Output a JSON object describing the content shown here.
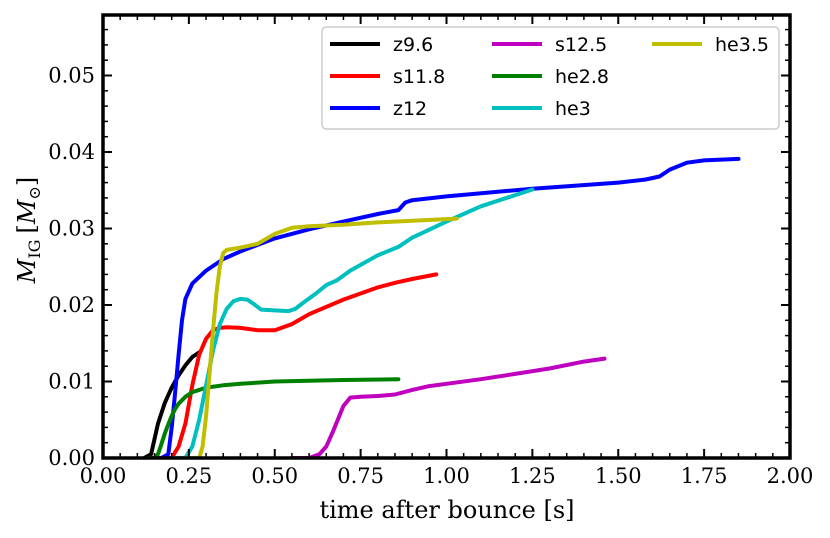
{
  "chart_data": {
    "type": "line",
    "title": "",
    "xlabel": "time after bounce [s]",
    "ylabel_main": "M",
    "ylabel_sub": "IG",
    "ylabel_unit_open": "[",
    "ylabel_unit_main": "M",
    "ylabel_unit_sub": "⊙",
    "ylabel_unit_close": "]",
    "xlim": [
      0.0,
      2.0
    ],
    "ylim": [
      0.0,
      0.058
    ],
    "x_ticks": [
      0.0,
      0.25,
      0.5,
      0.75,
      1.0,
      1.25,
      1.5,
      1.75,
      2.0
    ],
    "x_tick_labels": [
      "0.00",
      "0.25",
      "0.50",
      "0.75",
      "1.00",
      "1.25",
      "1.50",
      "1.75",
      "2.00"
    ],
    "y_ticks": [
      0.0,
      0.01,
      0.02,
      0.03,
      0.04,
      0.05
    ],
    "y_tick_labels": [
      "0.00",
      "0.01",
      "0.02",
      "0.03",
      "0.04",
      "0.05"
    ],
    "grid": false,
    "legend_position": "top-right",
    "series": [
      {
        "name": "z9.6",
        "color": "#000000",
        "x": [
          0.12,
          0.14,
          0.16,
          0.18,
          0.2,
          0.22,
          0.24,
          0.26,
          0.28
        ],
        "y": [
          0.0,
          0.0005,
          0.0045,
          0.0072,
          0.0092,
          0.0108,
          0.0121,
          0.0132,
          0.0138
        ]
      },
      {
        "name": "s11.8",
        "color": "#ff0000",
        "x": [
          0.15,
          0.18,
          0.2,
          0.22,
          0.24,
          0.26,
          0.28,
          0.3,
          0.32,
          0.34,
          0.36,
          0.4,
          0.45,
          0.5,
          0.55,
          0.6,
          0.7,
          0.75,
          0.8,
          0.85,
          0.9,
          0.97
        ],
        "y": [
          0.0,
          0.0,
          0.0,
          0.0015,
          0.0045,
          0.0095,
          0.0135,
          0.0156,
          0.0167,
          0.017,
          0.0171,
          0.017,
          0.0167,
          0.0167,
          0.0175,
          0.0188,
          0.0207,
          0.0215,
          0.0223,
          0.0229,
          0.0234,
          0.024
        ]
      },
      {
        "name": "z12",
        "color": "#0000ff",
        "x": [
          0.17,
          0.19,
          0.2,
          0.21,
          0.22,
          0.23,
          0.24,
          0.26,
          0.3,
          0.35,
          0.4,
          0.5,
          0.6,
          0.7,
          0.8,
          0.86,
          0.88,
          0.9,
          1.0,
          1.25,
          1.5,
          1.58,
          1.62,
          1.65,
          1.7,
          1.75,
          1.85
        ],
        "y": [
          0.0,
          0.0005,
          0.004,
          0.0085,
          0.0135,
          0.018,
          0.0208,
          0.0228,
          0.0245,
          0.026,
          0.027,
          0.0287,
          0.0299,
          0.0309,
          0.0319,
          0.0324,
          0.0334,
          0.0337,
          0.0342,
          0.0352,
          0.036,
          0.0364,
          0.0368,
          0.0377,
          0.0386,
          0.0389,
          0.0391
        ]
      },
      {
        "name": "s12.5",
        "color": "#bf00bf",
        "x": [
          0.55,
          0.6,
          0.63,
          0.65,
          0.67,
          0.7,
          0.72,
          0.75,
          0.8,
          0.85,
          0.9,
          0.95,
          1.0,
          1.1,
          1.2,
          1.3,
          1.4,
          1.46
        ],
        "y": [
          0.0,
          0.0,
          0.0005,
          0.0015,
          0.0035,
          0.0068,
          0.0079,
          0.008,
          0.0081,
          0.0083,
          0.0089,
          0.0094,
          0.0097,
          0.0103,
          0.011,
          0.0117,
          0.0126,
          0.013
        ]
      },
      {
        "name": "he2.8",
        "color": "#008000",
        "x": [
          0.13,
          0.15,
          0.16,
          0.17,
          0.18,
          0.19,
          0.2,
          0.21,
          0.22,
          0.24,
          0.26,
          0.3,
          0.35,
          0.4,
          0.5,
          0.6,
          0.7,
          0.86
        ],
        "y": [
          0.0,
          0.0,
          0.0005,
          0.0018,
          0.0032,
          0.0044,
          0.0055,
          0.0064,
          0.0071,
          0.008,
          0.0086,
          0.0092,
          0.0095,
          0.0097,
          0.01,
          0.0101,
          0.0102,
          0.0103
        ]
      },
      {
        "name": "he3",
        "color": "#00bfbf",
        "x": [
          0.2,
          0.22,
          0.24,
          0.26,
          0.28,
          0.3,
          0.32,
          0.34,
          0.36,
          0.38,
          0.4,
          0.42,
          0.44,
          0.46,
          0.5,
          0.54,
          0.56,
          0.58,
          0.62,
          0.65,
          0.68,
          0.72,
          0.8,
          0.86,
          0.9,
          1.0,
          1.1,
          1.25
        ],
        "y": [
          0.0,
          0.0,
          0.0,
          0.0015,
          0.005,
          0.0095,
          0.014,
          0.0175,
          0.0195,
          0.0205,
          0.0208,
          0.0207,
          0.0201,
          0.0194,
          0.0193,
          0.0192,
          0.0195,
          0.0202,
          0.0215,
          0.0226,
          0.0232,
          0.0245,
          0.0265,
          0.0276,
          0.0288,
          0.0309,
          0.0329,
          0.0351
        ]
      },
      {
        "name": "he3.5",
        "color": "#bfbf00",
        "x": [
          0.24,
          0.26,
          0.28,
          0.29,
          0.3,
          0.31,
          0.32,
          0.33,
          0.34,
          0.35,
          0.36,
          0.4,
          0.45,
          0.5,
          0.55,
          0.6,
          0.7,
          0.8,
          0.9,
          1.03
        ],
        "y": [
          0.0,
          0.0,
          0.0,
          0.0015,
          0.0055,
          0.011,
          0.0165,
          0.0215,
          0.025,
          0.0268,
          0.0272,
          0.0275,
          0.028,
          0.0293,
          0.0301,
          0.0303,
          0.0305,
          0.0308,
          0.031,
          0.0313
        ]
      }
    ]
  }
}
